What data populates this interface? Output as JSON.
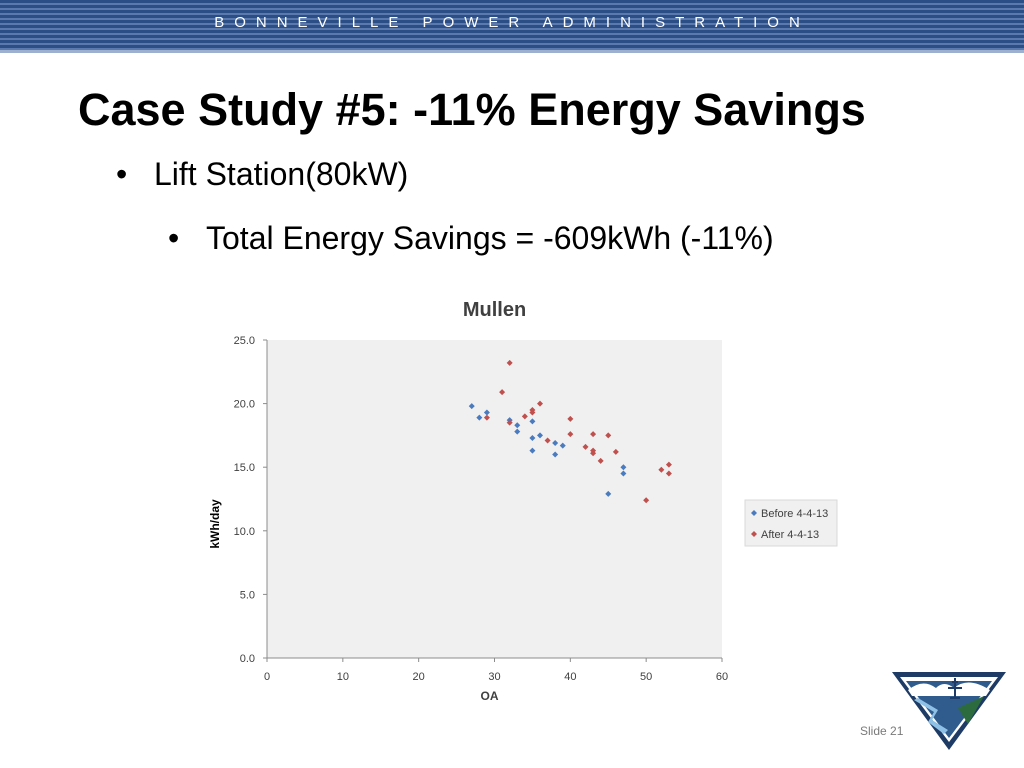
{
  "header": {
    "org": "BONNEVILLE POWER ADMINISTRATION"
  },
  "slide": {
    "title": "Case Study #5: -11% Energy Savings",
    "bullet1": "Lift Station(80kW)",
    "bullet2": "Total Energy Savings = -609kWh (-11%)",
    "bullet_glyph": "•",
    "slide_number": "Slide 21"
  },
  "chart_data": {
    "type": "scatter",
    "title": "Mullen",
    "xlabel": "OA",
    "ylabel": "kWh/day",
    "xlim": [
      0,
      60
    ],
    "ylim": [
      0,
      25
    ],
    "xticks": [
      "0",
      "10",
      "20",
      "30",
      "40",
      "50",
      "60"
    ],
    "yticks": [
      "0.0",
      "5.0",
      "10.0",
      "15.0",
      "20.0",
      "25.0"
    ],
    "grid": "none",
    "legend_position": "right",
    "series": [
      {
        "name": "Before 4-4-13",
        "color": "#4a7bbf",
        "points": [
          [
            27,
            19.8
          ],
          [
            28,
            18.9
          ],
          [
            29,
            19.3
          ],
          [
            32,
            18.7
          ],
          [
            33,
            18.3
          ],
          [
            33,
            17.8
          ],
          [
            35,
            18.6
          ],
          [
            35,
            17.3
          ],
          [
            35,
            16.3
          ],
          [
            36,
            17.5
          ],
          [
            38,
            16.9
          ],
          [
            38,
            16.0
          ],
          [
            39,
            16.7
          ],
          [
            45,
            12.9
          ],
          [
            47,
            15.0
          ],
          [
            47,
            14.5
          ]
        ]
      },
      {
        "name": "After 4-4-13",
        "color": "#c0504d",
        "points": [
          [
            29,
            18.9
          ],
          [
            31,
            20.9
          ],
          [
            32,
            23.2
          ],
          [
            32,
            18.5
          ],
          [
            34,
            19.0
          ],
          [
            35,
            19.5
          ],
          [
            35,
            19.3
          ],
          [
            36,
            20.0
          ],
          [
            37,
            17.1
          ],
          [
            40,
            18.8
          ],
          [
            40,
            17.6
          ],
          [
            42,
            16.6
          ],
          [
            43,
            17.6
          ],
          [
            43,
            16.3
          ],
          [
            43,
            16.1
          ],
          [
            44,
            15.5
          ],
          [
            45,
            17.5
          ],
          [
            46,
            16.2
          ],
          [
            50,
            12.4
          ],
          [
            52,
            14.8
          ],
          [
            53,
            15.2
          ],
          [
            53,
            14.5
          ]
        ]
      }
    ]
  }
}
